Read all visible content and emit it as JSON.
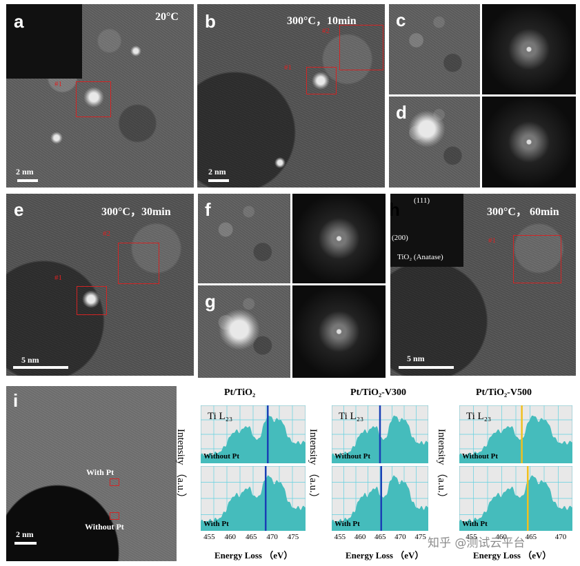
{
  "panels": {
    "a": {
      "letter": "a",
      "condition": "20°C",
      "scale": "2 nm",
      "tag1": "#1"
    },
    "b": {
      "letter": "b",
      "condition": "300°C，10min",
      "scale": "2 nm",
      "tag1": "#1",
      "tag2": "#2"
    },
    "c": {
      "letter": "c"
    },
    "d": {
      "letter": "d"
    },
    "e": {
      "letter": "e",
      "condition": "300°C，30min",
      "scale": "5 nm",
      "tag1": "#1",
      "tag2": "#2"
    },
    "f": {
      "letter": "f"
    },
    "g": {
      "letter": "g"
    },
    "h": {
      "letter": "h",
      "condition": "300°C，  60min",
      "scale": "5 nm",
      "tag": "#1",
      "inset_111": "(111)",
      "inset_200": "(200)",
      "inset_label": "TiO₂ (Anatase)"
    },
    "i": {
      "letter": "i",
      "scale": "2 nm",
      "with_pt": "With Pt",
      "without_pt": "Without Pt"
    }
  },
  "colors": {
    "spectrum_fill": "#45bcbc",
    "grid": "#5fd0e0",
    "marker_blue": "#1a3fb5",
    "marker_yellow": "#f0c020",
    "box_red": "#d32424"
  },
  "chart_data": [
    {
      "type": "area",
      "title": "Pt/TiO₂",
      "edge_label": "Ti L₂₃",
      "ylabel": "Intensity （a.u.）",
      "xlabel": "Energy Loss  （eV）",
      "xticks": [
        "455",
        "460",
        "465",
        "470",
        "475"
      ],
      "xlim": [
        453,
        478
      ],
      "series": [
        {
          "name": "Without Pt",
          "marker_ev": 469
        },
        {
          "name": "With Pt",
          "marker_ev": 468.5
        }
      ]
    },
    {
      "type": "area",
      "title": "Pt/TiO₂-V300",
      "edge_label": "Ti L₂₃",
      "ylabel": "Intensity （a.u.）",
      "xlabel": "Energy Loss  （eV）",
      "xticks": [
        "455",
        "460",
        "465",
        "470",
        "475"
      ],
      "xlim": [
        453,
        477
      ],
      "series": [
        {
          "name": "Without Pt",
          "marker_ev": 465
        },
        {
          "name": "With Pt",
          "marker_ev": 465.3
        }
      ]
    },
    {
      "type": "area",
      "title": "Pt/TiO₂-V500",
      "edge_label": "Ti L₂₃",
      "ylabel": "Intensity （a.u.）",
      "xlabel": "Energy Loss  （eV）",
      "xticks": [
        "455",
        "460",
        "465",
        "470"
      ],
      "xlim": [
        453,
        472
      ],
      "series": [
        {
          "name": "Without Pt",
          "marker_ev": 463.5
        },
        {
          "name": "With Pt",
          "marker_ev": 464.5
        }
      ]
    }
  ],
  "watermark": "知乎 @测试云平台"
}
